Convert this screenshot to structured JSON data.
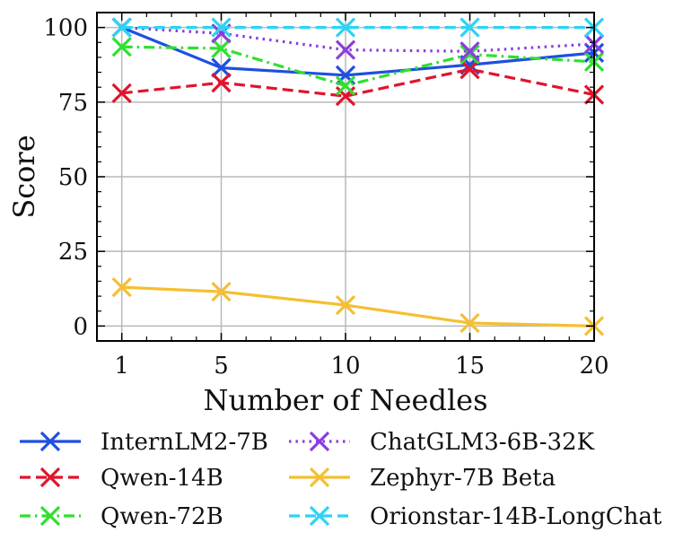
{
  "chart_data": {
    "type": "line",
    "title": "",
    "xlabel": "Number of Needles",
    "ylabel": "Score",
    "x": [
      1,
      5,
      10,
      15,
      20
    ],
    "xticks": [
      1,
      5,
      10,
      15,
      20
    ],
    "yticks": [
      0,
      25,
      50,
      75,
      100
    ],
    "xlim": [
      0,
      20
    ],
    "ylim": [
      -5,
      105
    ],
    "grid": true,
    "legend_position": "bottom",
    "series": [
      {
        "name": "InternLM2-7B",
        "color": "#1f4fe0",
        "dash": "solid",
        "values": [
          100,
          86.5,
          84,
          87.5,
          91.5
        ]
      },
      {
        "name": "Qwen-14B",
        "color": "#e0142c",
        "dash": "dashed",
        "values": [
          78,
          81.5,
          77,
          86,
          77.5
        ]
      },
      {
        "name": "Qwen-72B",
        "color": "#2fe02f",
        "dash": "dashdot",
        "values": [
          93.5,
          93,
          80.5,
          91,
          88.5
        ]
      },
      {
        "name": "ChatGLM3-6B-32K",
        "color": "#8a3ee0",
        "dash": "dotted",
        "values": [
          100,
          98,
          92.5,
          92,
          94.5
        ]
      },
      {
        "name": "Zephyr-7B Beta",
        "color": "#f5bf32",
        "dash": "solid",
        "values": [
          13,
          11.5,
          7,
          1,
          0
        ]
      },
      {
        "name": "Orionstar-14B-LongChat",
        "color": "#2ad4f5",
        "dash": "dashed",
        "values": [
          100,
          100,
          100,
          100,
          100
        ]
      }
    ]
  }
}
